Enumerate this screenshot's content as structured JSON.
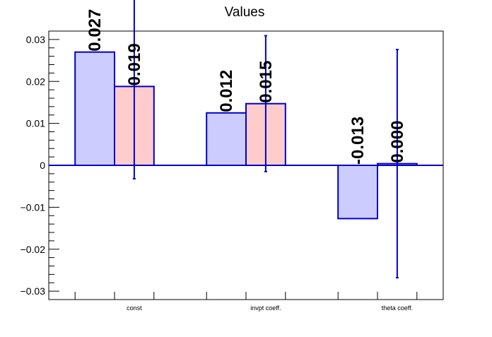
{
  "chart_data": {
    "type": "bar",
    "title": "Values",
    "xlabel": "",
    "ylabel": "",
    "ylim": [
      -0.032,
      0.032
    ],
    "yticks": [
      {
        "value": 0.03,
        "label": "0.03"
      },
      {
        "value": 0.02,
        "label": "0.02"
      },
      {
        "value": 0.01,
        "label": "0.01"
      },
      {
        "value": 0,
        "label": "0"
      },
      {
        "value": -0.01,
        "label": "−0.01"
      },
      {
        "value": -0.02,
        "label": "−0.02"
      },
      {
        "value": -0.03,
        "label": "−0.03"
      }
    ],
    "categories": [
      "const",
      "invpt coeff.",
      "theta coeff."
    ],
    "series": [
      {
        "fill": "#ccccff",
        "stroke": "#0000cc",
        "values": [
          0.027,
          0.0125,
          -0.0127
        ],
        "data_labels": [
          "0.027",
          "0.012",
          "-0.013"
        ],
        "errors": [
          null,
          null,
          null
        ]
      },
      {
        "fill": "#ffcccc",
        "stroke": "#0000cc",
        "values": [
          0.0188,
          0.0147,
          0.0004
        ],
        "data_labels": [
          "0.019",
          "0.015",
          "0.000"
        ],
        "errors": [
          0.022,
          0.0162,
          0.0272
        ]
      }
    ],
    "grid": false,
    "legend": "none"
  }
}
